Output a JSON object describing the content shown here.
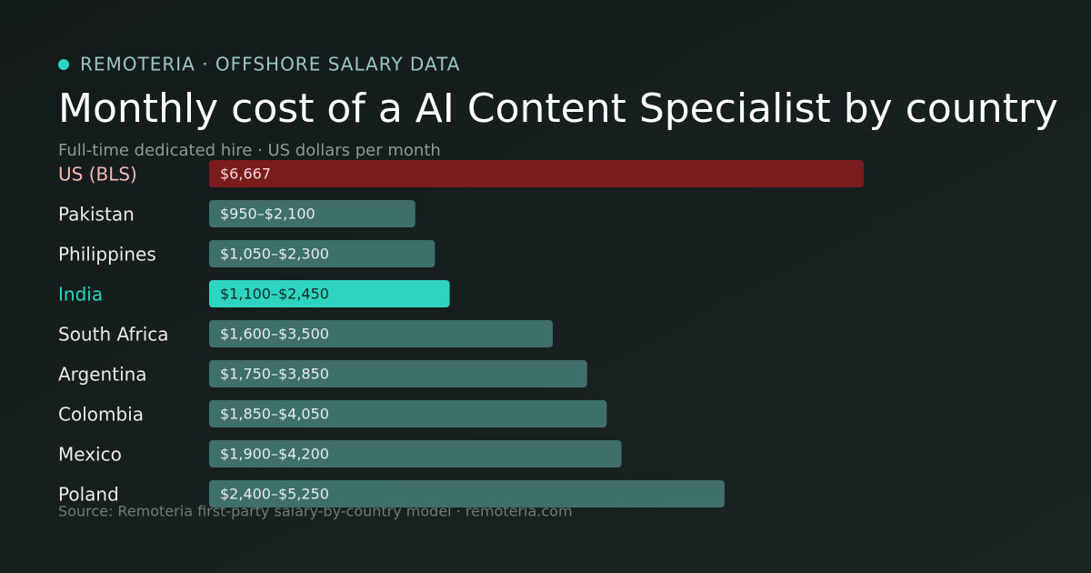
{
  "brand": "REMOTERIA · OFFSHORE SALARY DATA",
  "chart_data": {
    "type": "bar",
    "title": "Monthly cost of a AI Content Specialist by country",
    "subtitle": "Full-time dedicated hire · US dollars per month",
    "source": "Source: Remoteria first-party salary-by-country model · remoteria.com",
    "categories": [
      "US (BLS)",
      "Pakistan",
      "Philippines",
      "India",
      "South Africa",
      "Argentina",
      "Colombia",
      "Mexico",
      "Poland"
    ],
    "values": [
      6667,
      2100,
      2300,
      2450,
      3500,
      3850,
      4050,
      4200,
      5250
    ],
    "value_labels": [
      "$6,667",
      "$950–$2,100",
      "$1,050–$2,300",
      "$1,100–$2,450",
      "$1,600–$3,500",
      "$1,750–$3,850",
      "$1,850–$4,050",
      "$1,900–$4,200",
      "$2,400–$5,250"
    ],
    "colors": [
      "#7a1c1e",
      "#3e6f6a",
      "#3e6f6a",
      "#2dd4bf",
      "#3e6f6a",
      "#3e6f6a",
      "#3e6f6a",
      "#3e6f6a",
      "#3e6f6a"
    ],
    "label_colors": [
      "#f4b8b8",
      "#e6ecea",
      "#e6ecea",
      "#2dd4bf",
      "#e6ecea",
      "#e6ecea",
      "#e6ecea",
      "#e6ecea",
      "#e6ecea"
    ],
    "value_label_colors": [
      "#f1dada",
      "#e6ecea",
      "#e6ecea",
      "#0d2e2a",
      "#e6ecea",
      "#e6ecea",
      "#e6ecea",
      "#e6ecea",
      "#e6ecea"
    ]
  }
}
